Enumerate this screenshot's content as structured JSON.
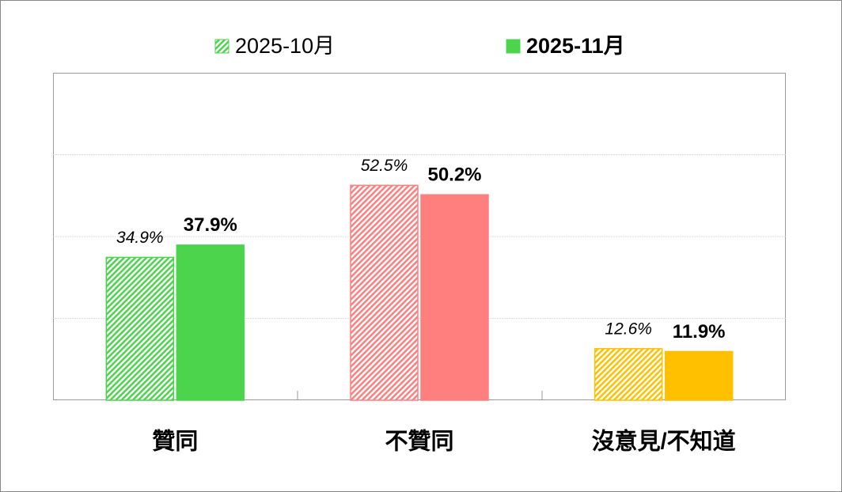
{
  "chart_data": {
    "type": "bar",
    "categories": [
      "贊同",
      "不贊同",
      "沒意見/不知道"
    ],
    "category_colors": [
      "#4cd44c",
      "#ff7f7f",
      "#ffc000"
    ],
    "series": [
      {
        "name": "2025-10月",
        "color": "#4cd44c",
        "pattern": "hatch",
        "values": [
          34.9,
          52.5,
          12.6
        ],
        "value_labels": [
          "34.9%",
          "52.5%",
          "12.6%"
        ]
      },
      {
        "name": "2025-11月",
        "color": "#4cd44c",
        "pattern": "solid",
        "values": [
          37.9,
          50.2,
          11.9
        ],
        "value_labels": [
          "37.9%",
          "50.2%",
          "11.9%"
        ]
      }
    ],
    "ylim": [
      0,
      80
    ],
    "yticks": [
      0,
      20,
      40,
      60,
      80
    ],
    "grid": true,
    "legend": "top"
  }
}
